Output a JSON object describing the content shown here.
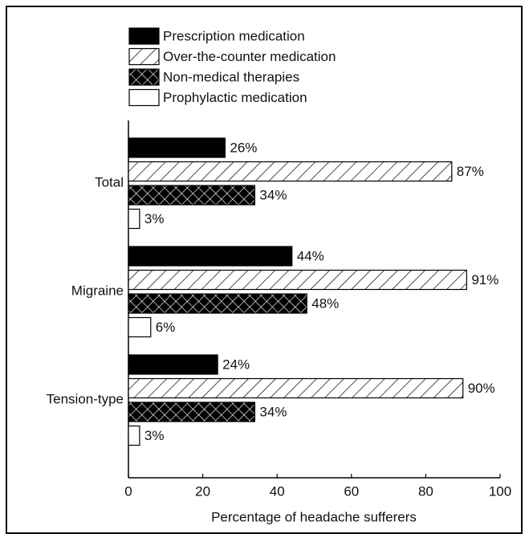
{
  "chart_data": {
    "type": "bar",
    "orientation": "horizontal",
    "xlabel": "Percentage of headache sufferers",
    "categories": [
      "Total",
      "Migraine",
      "Tension-type"
    ],
    "series": [
      {
        "name": "Prescription medication",
        "color": "#000000",
        "pattern": "solid",
        "values": [
          26,
          44,
          24
        ],
        "value_labels": [
          "26%",
          "44%",
          "24%"
        ]
      },
      {
        "name": "Over-the-counter medication",
        "color": "#ffffff",
        "pattern": "hatch",
        "values": [
          87,
          91,
          90
        ],
        "value_labels": [
          "87%",
          "91%",
          "90%"
        ]
      },
      {
        "name": "Non-medical therapies",
        "color": "#000000",
        "pattern": "crosshatch",
        "values": [
          34,
          48,
          34
        ],
        "value_labels": [
          "34%",
          "48%",
          "34%"
        ]
      },
      {
        "name": "Prophylactic medication",
        "color": "#ffffff",
        "pattern": "solid",
        "values": [
          3,
          6,
          3
        ],
        "value_labels": [
          "3%",
          "6%",
          "3%"
        ]
      }
    ],
    "xlim": [
      0,
      100
    ],
    "xticks": [
      0,
      20,
      40,
      60,
      80,
      100
    ],
    "legend": "top"
  }
}
